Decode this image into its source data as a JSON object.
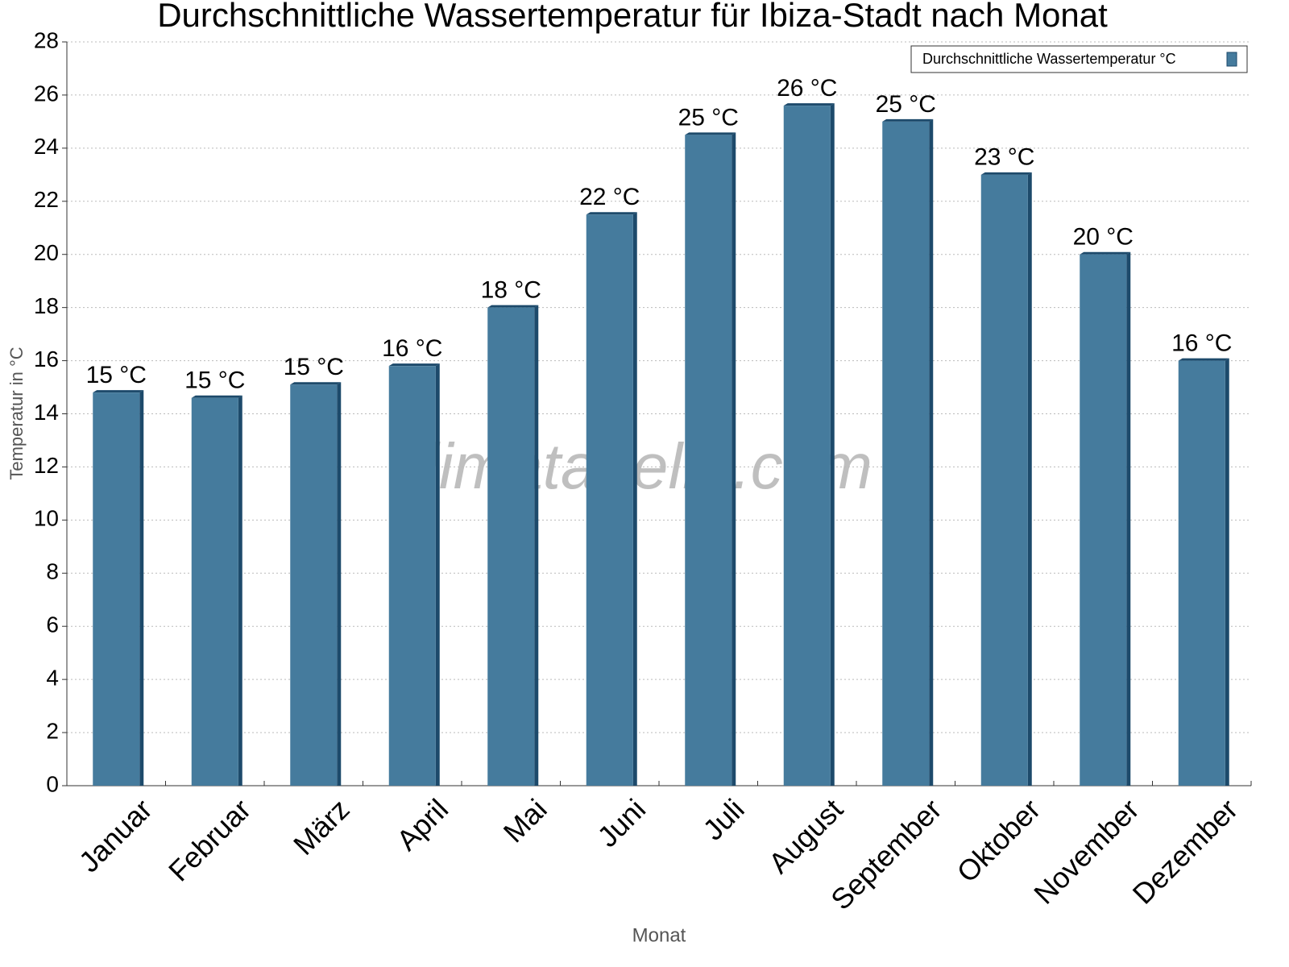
{
  "chart_data": {
    "type": "bar",
    "title": "Durchschnittliche Wassertemperatur für Ibiza-Stadt nach Monat",
    "x_label": "Monat",
    "y_label": "Temperatur in °C",
    "watermark": "klimatabelle.com",
    "categories": [
      "Januar",
      "Februar",
      "März",
      "April",
      "Mai",
      "Juni",
      "Juli",
      "August",
      "September",
      "Oktober",
      "November",
      "Dezember"
    ],
    "series": [
      {
        "name": "Durchschnittliche Wassertemperatur °C",
        "color": "#457b9d",
        "values": [
          14.8,
          14.6,
          15.1,
          15.8,
          18.0,
          21.5,
          24.5,
          25.6,
          25.0,
          23.0,
          20.0,
          16.0
        ],
        "value_labels": [
          "15 °C",
          "15 °C",
          "15 °C",
          "16 °C",
          "18 °C",
          "22 °C",
          "25 °C",
          "26 °C",
          "25 °C",
          "23 °C",
          "20 °C",
          "16 °C"
        ]
      }
    ],
    "ylim": [
      0,
      28
    ],
    "yticks": [
      0,
      2,
      4,
      6,
      8,
      10,
      12,
      14,
      16,
      18,
      20,
      22,
      24,
      26,
      28
    ],
    "grid": true,
    "legend": "top-right"
  }
}
